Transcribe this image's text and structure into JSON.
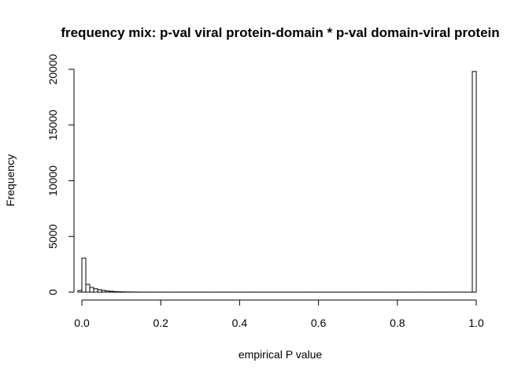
{
  "chart_data": {
    "type": "bar",
    "title": "frequency mix: p-val viral protein-domain * p-val domain-viral protein",
    "xlabel": "empirical P value",
    "ylabel": "Frequency",
    "xlim": [
      0,
      1
    ],
    "ylim": [
      0,
      20000
    ],
    "x_ticks": [
      "0.0",
      "0.2",
      "0.4",
      "0.6",
      "0.8",
      "1.0"
    ],
    "y_ticks": [
      "0",
      "5000",
      "10000",
      "15000",
      "20000"
    ],
    "bin_width": 0.01,
    "bins_start": -0.01,
    "values": [
      150,
      3050,
      700,
      420,
      300,
      220,
      160,
      110,
      80,
      50,
      35,
      25,
      18,
      12,
      10,
      8,
      6,
      5,
      4,
      4,
      3,
      3,
      3,
      3,
      3,
      3,
      3,
      3,
      3,
      3,
      3,
      3,
      3,
      3,
      3,
      3,
      3,
      3,
      3,
      3,
      3,
      3,
      3,
      3,
      3,
      3,
      3,
      3,
      3,
      3,
      3,
      3,
      3,
      3,
      3,
      3,
      3,
      3,
      3,
      3,
      3,
      3,
      3,
      3,
      3,
      3,
      3,
      3,
      3,
      3,
      3,
      3,
      3,
      3,
      3,
      3,
      3,
      3,
      3,
      3,
      3,
      3,
      3,
      3,
      3,
      3,
      3,
      3,
      3,
      3,
      3,
      3,
      3,
      3,
      3,
      3,
      3,
      3,
      3,
      3,
      19800
    ]
  }
}
